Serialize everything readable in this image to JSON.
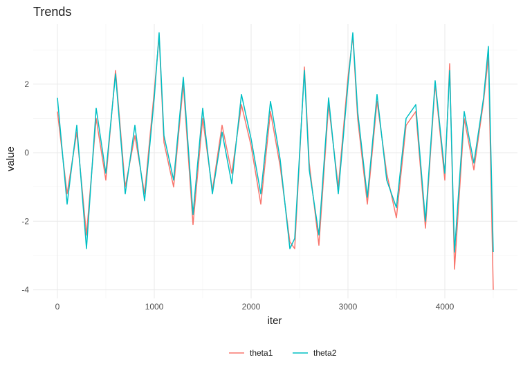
{
  "chart_data": {
    "type": "line",
    "title": "Trends",
    "xlabel": "iter",
    "ylabel": "value",
    "xlim": [
      -250,
      4750
    ],
    "ylim": [
      -4.25,
      3.75
    ],
    "x_ticks": [
      0,
      1000,
      2000,
      3000,
      4000
    ],
    "x_tick_labels": [
      "0",
      "1000",
      "2000",
      "3000",
      "4000"
    ],
    "y_ticks": [
      -4,
      -2,
      0,
      2
    ],
    "y_tick_labels": [
      "-4",
      "-2",
      "0",
      "2"
    ],
    "grid": true,
    "legend_position": "bottom",
    "x": [
      0,
      100,
      200,
      300,
      400,
      500,
      600,
      700,
      800,
      900,
      1000,
      1050,
      1100,
      1200,
      1300,
      1400,
      1500,
      1600,
      1700,
      1800,
      1900,
      2000,
      2100,
      2200,
      2300,
      2400,
      2450,
      2550,
      2600,
      2700,
      2800,
      2900,
      3000,
      3050,
      3100,
      3200,
      3300,
      3400,
      3500,
      3600,
      3700,
      3800,
      3900,
      4000,
      4050,
      4100,
      4200,
      4300,
      4400,
      4450,
      4500
    ],
    "series": [
      {
        "name": "theta1",
        "color": "#F8766D",
        "values": [
          1.2,
          -1.2,
          0.6,
          -2.4,
          1.0,
          -0.8,
          2.4,
          -1.0,
          0.5,
          -1.2,
          1.8,
          3.4,
          0.3,
          -1.0,
          2.0,
          -2.1,
          1.0,
          -1.1,
          0.8,
          -0.6,
          1.4,
          0.2,
          -1.5,
          1.2,
          -0.4,
          -2.6,
          -2.8,
          2.5,
          -0.3,
          -2.7,
          1.4,
          -1.0,
          2.2,
          3.4,
          1.0,
          -1.5,
          1.5,
          -0.6,
          -1.9,
          0.8,
          1.2,
          -2.2,
          2.0,
          -0.8,
          2.6,
          -3.4,
          1.0,
          -0.5,
          1.5,
          2.8,
          -4.0
        ]
      },
      {
        "name": "theta2",
        "color": "#00BFC4",
        "values": [
          1.6,
          -1.5,
          0.8,
          -2.8,
          1.3,
          -0.6,
          2.3,
          -1.2,
          0.8,
          -1.4,
          1.6,
          3.5,
          0.5,
          -0.8,
          2.2,
          -1.8,
          1.3,
          -1.2,
          0.6,
          -0.9,
          1.7,
          0.4,
          -1.2,
          1.5,
          -0.2,
          -2.8,
          -2.5,
          2.4,
          -0.5,
          -2.4,
          1.6,
          -1.2,
          2.0,
          3.5,
          1.2,
          -1.3,
          1.7,
          -0.8,
          -1.6,
          1.0,
          1.4,
          -2.0,
          2.1,
          -0.6,
          2.4,
          -2.9,
          1.2,
          -0.3,
          1.6,
          3.1,
          -2.9
        ]
      }
    ]
  }
}
